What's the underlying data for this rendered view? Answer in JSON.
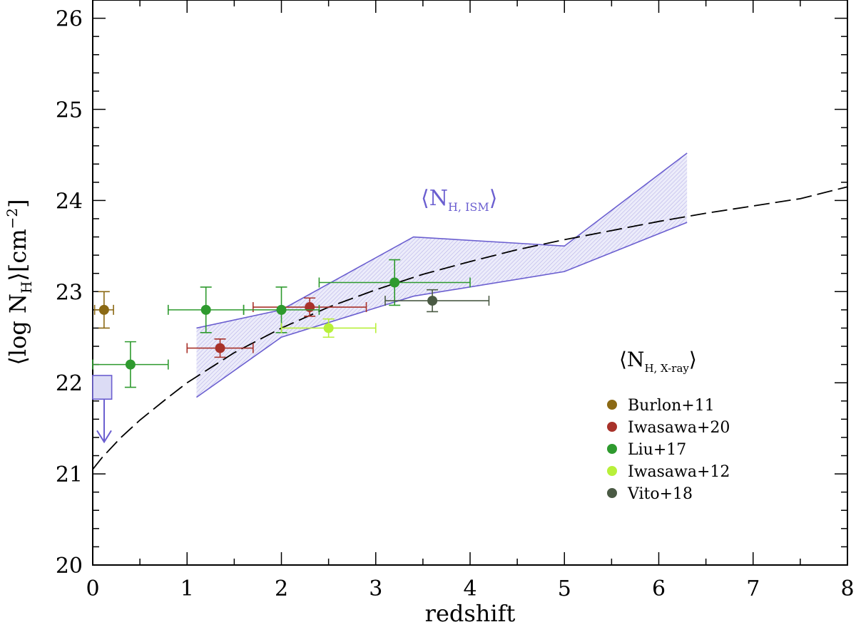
{
  "chart_data": {
    "type": "scatter",
    "xlabel": "redshift",
    "ylabel_text": "⟨log N",
    "ylabel_sub": "H",
    "ylabel_unit": "⟩[cm",
    "ylabel_sup": "−2",
    "ylabel_close": "]",
    "xlim": [
      0,
      8
    ],
    "ylim": [
      20,
      26.2
    ],
    "xticks": [
      0,
      1,
      2,
      3,
      4,
      5,
      6,
      7,
      8
    ],
    "xtick_labels": [
      "0",
      "1",
      "2",
      "3",
      "4",
      "5",
      "6",
      "7",
      "8"
    ],
    "yticks": [
      20,
      21,
      22,
      23,
      24,
      25,
      26
    ],
    "ytick_labels": [
      "20",
      "21",
      "22",
      "23",
      "24",
      "25",
      "26"
    ],
    "ism_annotation": {
      "open": "⟨N",
      "sub": "H, ISM",
      "close": "⟩",
      "x": 3.6,
      "y": 24.0
    },
    "legend_title": {
      "open": "⟨N",
      "sub": "H, X-ray",
      "close": "⟩"
    },
    "ism_band": {
      "color": "#6b5fd0",
      "fill": "#dcdcf5",
      "upper": [
        [
          1.1,
          22.6
        ],
        [
          2.0,
          22.8
        ],
        [
          3.4,
          23.6
        ],
        [
          5.0,
          23.5
        ],
        [
          6.3,
          24.52
        ]
      ],
      "lower": [
        [
          1.1,
          21.84
        ],
        [
          2.0,
          22.5
        ],
        [
          3.4,
          22.95
        ],
        [
          5.0,
          23.22
        ],
        [
          6.3,
          23.76
        ]
      ]
    },
    "upper_limit": {
      "color": "#6b5fd0",
      "fill": "#dcdcf5",
      "x": [
        0.0,
        0.05
      ],
      "y": [
        21.82,
        22.08
      ],
      "arrow_from": 21.82,
      "arrow_to": 21.35
    },
    "model_curve": {
      "style": "dashed",
      "points": [
        [
          0.0,
          21.05
        ],
        [
          0.1,
          21.18
        ],
        [
          0.3,
          21.4
        ],
        [
          0.5,
          21.59
        ],
        [
          0.8,
          21.84
        ],
        [
          1.0,
          22.0
        ],
        [
          1.5,
          22.33
        ],
        [
          2.0,
          22.6
        ],
        [
          2.5,
          22.83
        ],
        [
          3.0,
          23.02
        ],
        [
          3.5,
          23.19
        ],
        [
          4.0,
          23.33
        ],
        [
          4.5,
          23.46
        ],
        [
          5.0,
          23.57
        ],
        [
          5.5,
          23.67
        ],
        [
          6.0,
          23.77
        ],
        [
          6.5,
          23.86
        ],
        [
          7.0,
          23.94
        ],
        [
          7.5,
          24.02
        ],
        [
          8.0,
          24.15
        ]
      ]
    },
    "series": [
      {
        "name": "Burlon+11",
        "color": "#8b6914",
        "points": [
          {
            "x": 0.12,
            "y": 22.8,
            "xerr": [
              0.1,
              0.1
            ],
            "yerr": [
              0.2,
              0.2
            ]
          }
        ]
      },
      {
        "name": "Iwasawa+20",
        "color": "#a8322a",
        "points": [
          {
            "x": 1.35,
            "y": 22.38,
            "xerr": [
              0.35,
              0.35
            ],
            "yerr": [
              0.1,
              0.1
            ]
          },
          {
            "x": 2.3,
            "y": 22.83,
            "xerr": [
              0.6,
              0.6
            ],
            "yerr": [
              0.1,
              0.1
            ]
          }
        ]
      },
      {
        "name": "Liu+17",
        "color": "#2e9a2e",
        "points": [
          {
            "x": 0.4,
            "y": 22.2,
            "xerr": [
              0.4,
              0.4
            ],
            "yerr": [
              0.25,
              0.25
            ]
          },
          {
            "x": 1.2,
            "y": 22.8,
            "xerr": [
              0.4,
              0.4
            ],
            "yerr": [
              0.25,
              0.25
            ]
          },
          {
            "x": 2.0,
            "y": 22.8,
            "xerr": [
              0.4,
              0.4
            ],
            "yerr": [
              0.25,
              0.25
            ]
          },
          {
            "x": 3.2,
            "y": 23.1,
            "xerr": [
              0.8,
              0.8
            ],
            "yerr": [
              0.25,
              0.25
            ]
          }
        ]
      },
      {
        "name": "Iwasawa+12",
        "color": "#b8f03a",
        "points": [
          {
            "x": 2.5,
            "y": 22.6,
            "xerr": [
              0.5,
              0.5
            ],
            "yerr": [
              0.1,
              0.1
            ]
          }
        ]
      },
      {
        "name": "Vito+18",
        "color": "#4a5a44",
        "points": [
          {
            "x": 3.6,
            "y": 22.9,
            "xerr": [
              0.5,
              0.6
            ],
            "yerr": [
              0.12,
              0.12
            ]
          }
        ]
      }
    ],
    "legend": [
      {
        "label": "Burlon+11",
        "color": "#8b6914"
      },
      {
        "label": "Iwasawa+20",
        "color": "#a8322a"
      },
      {
        "label": "Liu+17",
        "color": "#2e9a2e"
      },
      {
        "label": "Iwasawa+12",
        "color": "#b8f03a"
      },
      {
        "label": "Vito+18",
        "color": "#4a5a44"
      }
    ],
    "legend_position": "right"
  }
}
